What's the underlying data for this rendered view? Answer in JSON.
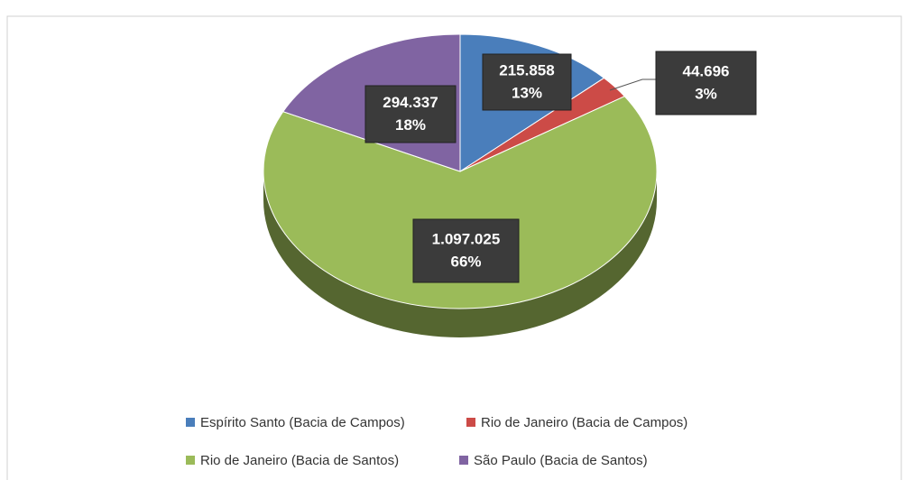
{
  "chart_data": {
    "type": "pie",
    "categories": [
      "Espírito Santo (Bacia de Campos)",
      "Rio de Janeiro (Bacia de Campos)",
      "Rio de Janeiro (Bacia de Santos)",
      "São Paulo (Bacia de Santos)"
    ],
    "values": [
      215858,
      44696,
      1097025,
      294337
    ],
    "value_labels": [
      "215.858",
      "44.696",
      "1.097.025",
      "294.337"
    ],
    "percentages": [
      13,
      3,
      66,
      18
    ],
    "percentage_labels": [
      "13%",
      "3%",
      "66%",
      "18%"
    ],
    "colors": [
      "#4a7ebb",
      "#cc4b47",
      "#9bbb59",
      "#8064a2"
    ],
    "legend": "bottom"
  }
}
